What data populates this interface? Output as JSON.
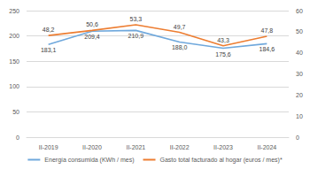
{
  "chart_data": {
    "type": "line",
    "categories": [
      "II-2019",
      "II-2020",
      "II-2021",
      "II-2022",
      "II-2023",
      "II-2024"
    ],
    "series": [
      {
        "name": "Energía consumida (KWh / mes)",
        "color": "#6fa8dc",
        "values": [
          183.1,
          209.4,
          210.9,
          188.0,
          175.6,
          184.6
        ],
        "value_labels": [
          "183,1",
          "209,4",
          "210,9",
          "188,0",
          "175,6",
          "184,6"
        ]
      },
      {
        "name": "Gasto total facturado al hogar (euros / mes)*",
        "color": "#ed7d31",
        "axis": "y2",
        "values": [
          48.2,
          50.6,
          53.3,
          49.7,
          43.3,
          47.8
        ],
        "value_labels": [
          "48,2",
          "50,6",
          "53,3",
          "49,7",
          "43,3",
          "47,8"
        ]
      }
    ],
    "ylim": [
      0,
      250
    ],
    "yticks": [
      0,
      50,
      100,
      150,
      200,
      250
    ],
    "y2lim": [
      0,
      60
    ],
    "y2ticks": [
      0,
      10,
      20,
      30,
      40,
      50,
      60
    ],
    "grid": true,
    "legend": "bottom",
    "data_labels": true
  }
}
